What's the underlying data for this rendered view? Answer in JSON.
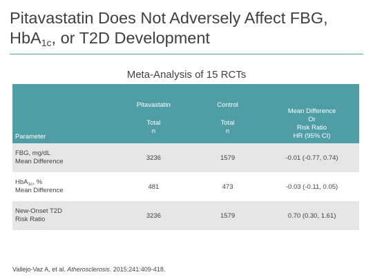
{
  "title": {
    "line1": "Pitavastatin Does Not Adversely Affect FBG,",
    "line2_prefix": "HbA",
    "line2_sub": "1c",
    "line2_suffix": ", or T2D Development"
  },
  "table_caption": "Meta-Analysis of 15 RCTs",
  "table": {
    "headers": {
      "parameter": "Parameter",
      "pitavastatin": "Pitavastatin",
      "control": "Control",
      "pita_total": "Total",
      "pita_n": "n",
      "ctrl_total": "Total",
      "ctrl_n": "n",
      "result_line1": "Mean Difference",
      "result_line2": "Or",
      "result_line3": "Risk Ratio",
      "result_line4": "HR (95% CI)"
    },
    "rows": [
      {
        "param_line1": "FBG, mg/dL",
        "param_line2": "Mean Difference",
        "pitavastatin_n": "3236",
        "control_n": "1579",
        "result": "-0.01 (-0.77, 0.74)"
      },
      {
        "param_line1_prefix": "HbA",
        "param_line1_sub": "1c",
        "param_line1_suffix": ", %",
        "param_line2": "Mean Difference",
        "pitavastatin_n": "481",
        "control_n": "473",
        "result": "-0.03 (-0.11, 0.05)"
      },
      {
        "param_line1": "New-Onset T2D",
        "param_line2": "Risk Ratio",
        "pitavastatin_n": "3236",
        "control_n": "1579",
        "result": "0.70 (0.30, 1.61)"
      }
    ]
  },
  "citation": {
    "authors": "Vallejo-Vaz A, et al. ",
    "journal": "Atherosclerosis",
    "details": ". 2015;241:409-418."
  },
  "colors": {
    "header_bg": "#4f9ea6",
    "rule": "#4c9aa3",
    "row_shade": "#e6e6e6"
  }
}
